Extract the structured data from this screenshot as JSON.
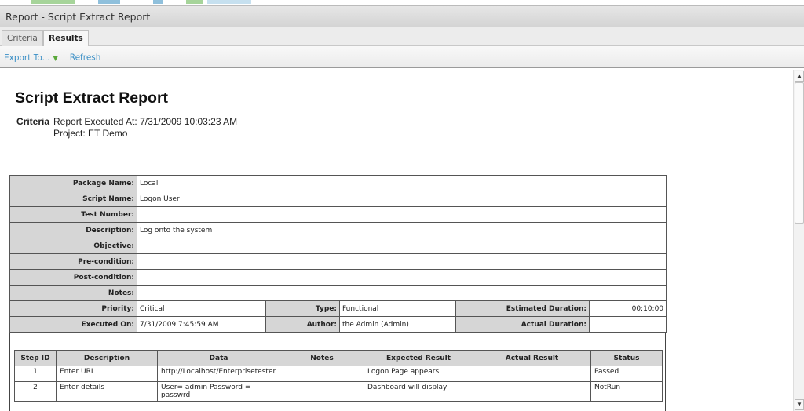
{
  "window": {
    "title": "Report - Script Extract Report"
  },
  "tabs": [
    {
      "label": "Criteria"
    },
    {
      "label": "Results",
      "active": true
    }
  ],
  "toolbar": {
    "export_label": "Export To...",
    "refresh_label": "Refresh"
  },
  "report": {
    "title": "Script Extract Report",
    "criteria_label": "Criteria",
    "executed_at": "Report Executed At: 7/31/2009 10:03:23 AM",
    "project": "Project: ET Demo",
    "fields": [
      {
        "label": "Package Name:",
        "value": "Local"
      },
      {
        "label": "Script Name:",
        "value": "Logon User"
      },
      {
        "label": "Test Number:",
        "value": ""
      },
      {
        "label": "Description:",
        "value": "Log onto the system"
      },
      {
        "label": "Objective:",
        "value": ""
      },
      {
        "label": "Pre-condition:",
        "value": ""
      },
      {
        "label": "Post-condition:",
        "value": ""
      },
      {
        "label": "Notes:",
        "value": ""
      }
    ],
    "priority": {
      "label": "Priority:",
      "value": "Critical"
    },
    "type": {
      "label": "Type:",
      "value": "Functional"
    },
    "estimated_duration": {
      "label": "Estimated Duration:",
      "value": "00:10:00"
    },
    "executed_on": {
      "label": "Executed On:",
      "value": "7/31/2009 7:45:59 AM"
    },
    "author": {
      "label": "Author:",
      "value": "the Admin (Admin)"
    },
    "actual_duration": {
      "label": "Actual Duration:",
      "value": ""
    },
    "steps": {
      "headers": [
        "Step ID",
        "Description",
        "Data",
        "Notes",
        "Expected Result",
        "Actual Result",
        "Status"
      ],
      "rows": [
        [
          "1",
          "Enter URL",
          "http://Localhost/Enterprisetester",
          "",
          "Logon Page appears",
          "",
          "Passed"
        ],
        [
          "2",
          "Enter details",
          "User= admin Password = passwrd",
          "",
          "Dashboard will display",
          "",
          "NotRun"
        ]
      ]
    }
  }
}
